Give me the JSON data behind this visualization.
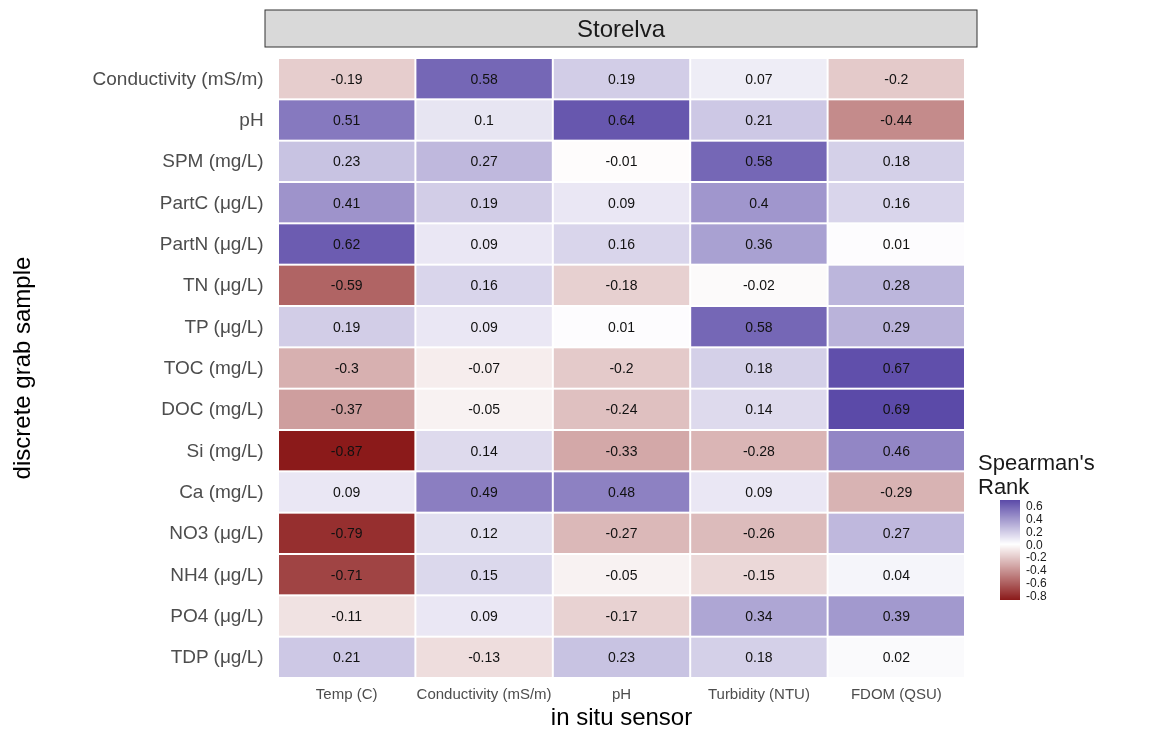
{
  "chart_data": {
    "type": "heatmap",
    "title": "Storelva",
    "xlabel": "in situ sensor",
    "ylabel": "discrete grab sample",
    "clabel": "Spearman's Rank",
    "categories": [
      "Temp (C)",
      "Conductivity (mS/m)",
      "pH",
      "Turbidity (NTU)",
      "FDOM (QSU)"
    ],
    "y_categories": [
      "Conductivity (mS/m)",
      "pH",
      "SPM (mg/L)",
      "PartC (μg/L)",
      "PartN (μg/L)",
      "TN (μg/L)",
      "TP (μg/L)",
      "TOC (mg/L)",
      "DOC (mg/L)",
      "Si (mg/L)",
      "Ca (mg/L)",
      "NO3 (μg/L)",
      "NH4 (μg/L)",
      "PO4 (μg/L)",
      "TDP (μg/L)"
    ],
    "cells": [
      [
        -0.19,
        0.58,
        0.19,
        0.07,
        -0.2
      ],
      [
        0.51,
        0.1,
        0.64,
        0.21,
        -0.44
      ],
      [
        0.23,
        0.27,
        -0.01,
        0.58,
        0.18
      ],
      [
        0.41,
        0.19,
        0.09,
        0.4,
        0.16
      ],
      [
        0.62,
        0.09,
        0.16,
        0.36,
        0.01
      ],
      [
        -0.59,
        0.16,
        -0.18,
        -0.02,
        0.28
      ],
      [
        0.19,
        0.09,
        0.01,
        0.58,
        0.29
      ],
      [
        -0.3,
        -0.07,
        -0.2,
        0.18,
        0.67
      ],
      [
        -0.37,
        -0.05,
        -0.24,
        0.14,
        0.69
      ],
      [
        -0.87,
        0.14,
        -0.33,
        -0.28,
        0.46
      ],
      [
        0.09,
        0.49,
        0.48,
        0.09,
        -0.29
      ],
      [
        -0.79,
        0.12,
        -0.27,
        -0.26,
        0.27
      ],
      [
        -0.71,
        0.15,
        -0.05,
        -0.15,
        0.04
      ],
      [
        -0.11,
        0.09,
        -0.17,
        0.34,
        0.39
      ],
      [
        0.21,
        -0.13,
        0.23,
        0.18,
        0.02
      ]
    ],
    "data_labels": true,
    "clim": [
      -0.87,
      0.69
    ],
    "cticks": [
      -0.8,
      -0.6,
      -0.4,
      -0.2,
      {
        "value": 0,
        "label": "0.0"
      },
      0.2,
      0.4,
      0.6
    ]
  }
}
